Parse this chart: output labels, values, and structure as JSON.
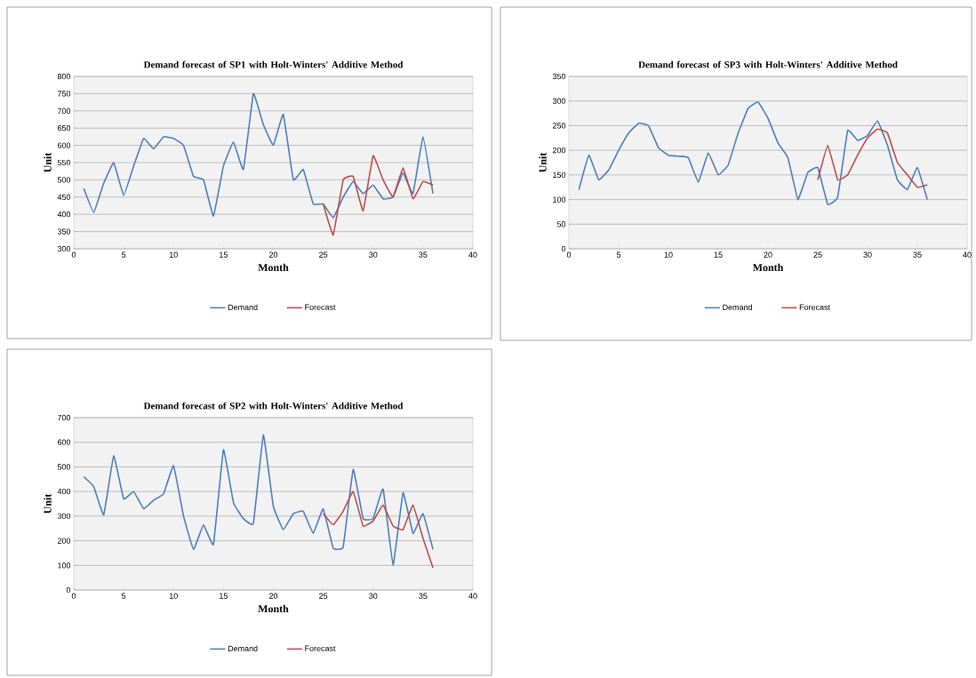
{
  "chart_data": [
    {
      "type": "line",
      "title": "Demand forecast of SP1 with Holt-Winters' Additive Method",
      "xlabel": "Month",
      "ylabel": "Unit",
      "xlim": [
        0,
        40
      ],
      "xticks": [
        0,
        5,
        10,
        15,
        20,
        25,
        30,
        35,
        40
      ],
      "ylim": [
        300,
        800
      ],
      "yticks": [
        300,
        350,
        400,
        450,
        500,
        550,
        600,
        650,
        700,
        750,
        800
      ],
      "grid": "y",
      "legend": "bottom",
      "marker": "none",
      "line_style": "solid",
      "x": [
        1,
        2,
        3,
        4,
        5,
        6,
        7,
        8,
        9,
        10,
        11,
        12,
        13,
        14,
        15,
        16,
        17,
        18,
        19,
        20,
        21,
        22,
        23,
        24,
        25,
        26,
        27,
        28,
        29,
        30,
        31,
        32,
        33,
        34,
        35,
        36
      ],
      "series": [
        {
          "name": "Demand",
          "color": "#4a7ebb",
          "values": [
            475,
            405,
            490,
            550,
            455,
            540,
            620,
            590,
            625,
            620,
            600,
            510,
            500,
            395,
            540,
            610,
            530,
            750,
            660,
            600,
            690,
            500,
            530,
            430,
            430,
            390,
            450,
            495,
            460,
            485,
            445,
            450,
            520,
            460,
            625,
            460
          ]
        },
        {
          "name": "Forecast",
          "color": "#be4b48",
          "x": [
            25,
            26,
            27,
            28,
            29,
            30,
            31,
            32,
            33,
            34,
            35,
            36
          ],
          "values": [
            430,
            340,
            500,
            510,
            410,
            570,
            500,
            450,
            535,
            445,
            495,
            485
          ]
        }
      ]
    },
    {
      "type": "line",
      "title": "Demand forecast of SP3 with Holt-Winters' Additive Method",
      "xlabel": "Month",
      "ylabel": "Unit",
      "xlim": [
        0,
        40
      ],
      "xticks": [
        0,
        5,
        10,
        15,
        20,
        25,
        30,
        35,
        40
      ],
      "ylim": [
        0,
        350
      ],
      "yticks": [
        0,
        50,
        100,
        150,
        200,
        250,
        300,
        350
      ],
      "grid": "y",
      "legend": "bottom",
      "marker": "none",
      "line_style": "solid",
      "x": [
        1,
        2,
        3,
        4,
        5,
        6,
        7,
        8,
        9,
        10,
        11,
        12,
        13,
        14,
        15,
        16,
        17,
        18,
        19,
        20,
        21,
        22,
        23,
        24,
        25,
        26,
        27,
        28,
        29,
        30,
        31,
        32,
        33,
        34,
        35,
        36
      ],
      "series": [
        {
          "name": "Demand",
          "color": "#4a7ebb",
          "values": [
            120,
            190,
            140,
            160,
            200,
            235,
            255,
            250,
            205,
            190,
            188,
            185,
            135,
            195,
            150,
            170,
            235,
            285,
            298,
            265,
            215,
            185,
            100,
            155,
            165,
            90,
            105,
            240,
            220,
            230,
            260,
            210,
            140,
            120,
            165,
            100
          ]
        },
        {
          "name": "Forecast",
          "color": "#be4b48",
          "x": [
            25,
            26,
            27,
            28,
            29,
            30,
            31,
            32,
            33,
            34,
            35,
            36
          ],
          "values": [
            140,
            210,
            140,
            150,
            190,
            225,
            243,
            235,
            175,
            150,
            125,
            130
          ]
        }
      ]
    },
    {
      "type": "line",
      "title": "Demand forecast of SP2 with Holt-Winters' Additive Method",
      "xlabel": "Month",
      "ylabel": "Unit",
      "xlim": [
        0,
        40
      ],
      "xticks": [
        0,
        5,
        10,
        15,
        20,
        25,
        30,
        35,
        40
      ],
      "ylim": [
        0,
        700
      ],
      "yticks": [
        0,
        100,
        200,
        300,
        400,
        500,
        600,
        700
      ],
      "grid": "y",
      "legend": "bottom",
      "marker": "none",
      "line_style": "solid",
      "x": [
        1,
        2,
        3,
        4,
        5,
        6,
        7,
        8,
        9,
        10,
        11,
        12,
        13,
        14,
        15,
        16,
        17,
        18,
        19,
        20,
        21,
        22,
        23,
        24,
        25,
        26,
        27,
        28,
        29,
        30,
        31,
        32,
        33,
        34,
        35,
        36
      ],
      "series": [
        {
          "name": "Demand",
          "color": "#4a7ebb",
          "values": [
            460,
            420,
            305,
            545,
            370,
            400,
            330,
            365,
            390,
            505,
            300,
            165,
            265,
            185,
            570,
            355,
            290,
            270,
            630,
            340,
            245,
            310,
            320,
            230,
            330,
            170,
            175,
            490,
            290,
            290,
            410,
            100,
            395,
            230,
            310,
            165
          ]
        },
        {
          "name": "Forecast",
          "color": "#be4b48",
          "x": [
            25,
            26,
            27,
            28,
            29,
            30,
            31,
            32,
            33,
            34,
            35,
            36
          ],
          "values": [
            310,
            265,
            320,
            400,
            260,
            280,
            345,
            260,
            245,
            345,
            210,
            90
          ]
        }
      ]
    }
  ]
}
